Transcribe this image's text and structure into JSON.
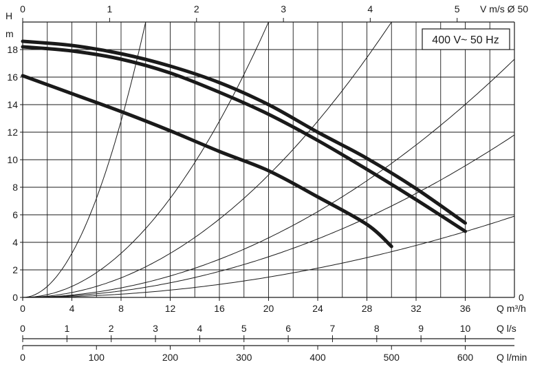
{
  "chart_data": {
    "type": "line",
    "legend_text": "400 V~ 50 Hz",
    "y_axis": {
      "label_top": "H",
      "unit": "m",
      "range": [
        0,
        20
      ],
      "ticks": [
        0,
        2,
        4,
        6,
        8,
        10,
        12,
        14,
        16,
        18
      ]
    },
    "x_axis_primary": {
      "label": "Q m³/h",
      "range": [
        0,
        40
      ],
      "ticks": [
        0,
        4,
        8,
        12,
        16,
        20,
        24,
        28,
        32,
        36
      ]
    },
    "x_axis_top": {
      "label": "V m/s Ø 50",
      "ticks": [
        0,
        1,
        2,
        3,
        4,
        5
      ],
      "tick_positions_m3h": [
        0,
        7.07,
        14.14,
        21.21,
        28.27,
        35.34
      ]
    },
    "x_axis_ls": {
      "label": "Q l/s",
      "ticks": [
        0,
        1,
        2,
        3,
        4,
        5,
        6,
        7,
        8,
        9,
        10
      ],
      "tick_positions_m3h": [
        0,
        3.6,
        7.2,
        10.8,
        14.4,
        18,
        21.6,
        25.2,
        28.8,
        32.4,
        36
      ]
    },
    "x_axis_lmin": {
      "label": "Q l/min",
      "ticks": [
        0,
        100,
        200,
        300,
        400,
        500,
        600
      ],
      "tick_positions_m3h": [
        0,
        6,
        12,
        18,
        24,
        30,
        36
      ]
    },
    "right_zero_label": "0",
    "series": [
      {
        "values": [
          [
            0,
            18.6
          ],
          [
            4,
            18.3
          ],
          [
            8,
            17.7
          ],
          [
            12,
            16.8
          ],
          [
            16,
            15.6
          ],
          [
            20,
            14.0
          ],
          [
            24,
            12.0
          ],
          [
            28,
            10.1
          ],
          [
            32,
            7.9
          ],
          [
            36,
            5.4
          ]
        ]
      },
      {
        "values": [
          [
            0,
            18.2
          ],
          [
            4,
            17.9
          ],
          [
            8,
            17.3
          ],
          [
            12,
            16.3
          ],
          [
            16,
            14.9
          ],
          [
            20,
            13.3
          ],
          [
            24,
            11.4
          ],
          [
            28,
            9.3
          ],
          [
            32,
            7.1
          ],
          [
            36,
            4.8
          ]
        ]
      },
      {
        "values": [
          [
            0,
            16.1
          ],
          [
            4,
            14.8
          ],
          [
            8,
            13.5
          ],
          [
            12,
            12.1
          ],
          [
            16,
            10.6
          ],
          [
            20,
            9.2
          ],
          [
            24,
            7.3
          ],
          [
            28,
            5.3
          ],
          [
            30,
            3.7
          ]
        ]
      }
    ],
    "system_curves": [
      {
        "through": [
          10,
          20
        ]
      },
      {
        "through": [
          20,
          20
        ]
      },
      {
        "through": [
          30,
          20
        ]
      },
      {
        "through": [
          40,
          17.3
        ]
      },
      {
        "through": [
          40,
          11.8
        ]
      },
      {
        "through": [
          40,
          5.9
        ]
      }
    ],
    "grid": true
  }
}
